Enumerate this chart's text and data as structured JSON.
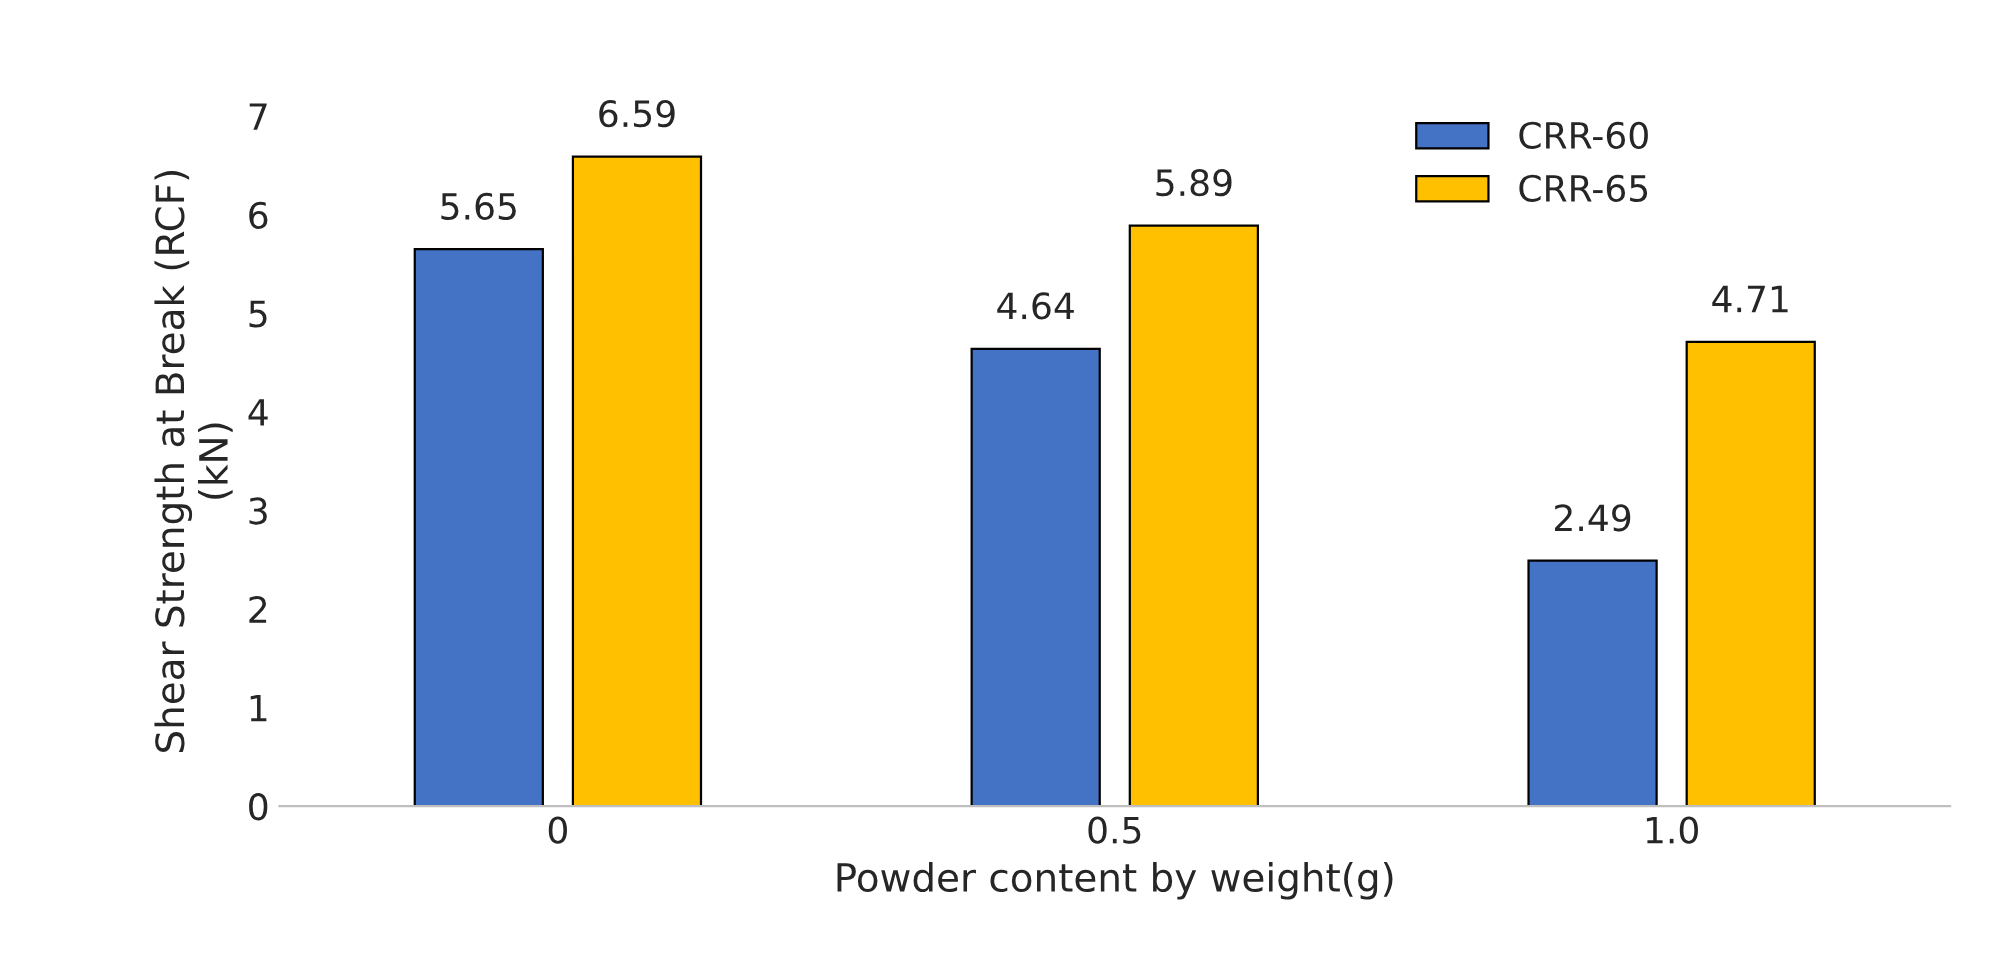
{
  "chart_data": {
    "type": "bar",
    "xlabel": "Powder content by weight(g)",
    "ylabel": "Shear Strength at Break (RCF)\n(kN)",
    "categories": [
      "0",
      "0.5",
      "1.0"
    ],
    "series": [
      {
        "name": "CRR-60",
        "color": "#4472c4",
        "values": [
          5.65,
          4.64,
          2.49
        ]
      },
      {
        "name": "CRR-65",
        "color": "#ffc000",
        "values": [
          6.59,
          5.89,
          4.71
        ]
      }
    ],
    "ylim": [
      0,
      7
    ],
    "yticks": [
      0,
      1,
      2,
      3,
      4,
      5,
      6,
      7
    ],
    "data_labels": true,
    "legend": "top right",
    "grid": false
  }
}
